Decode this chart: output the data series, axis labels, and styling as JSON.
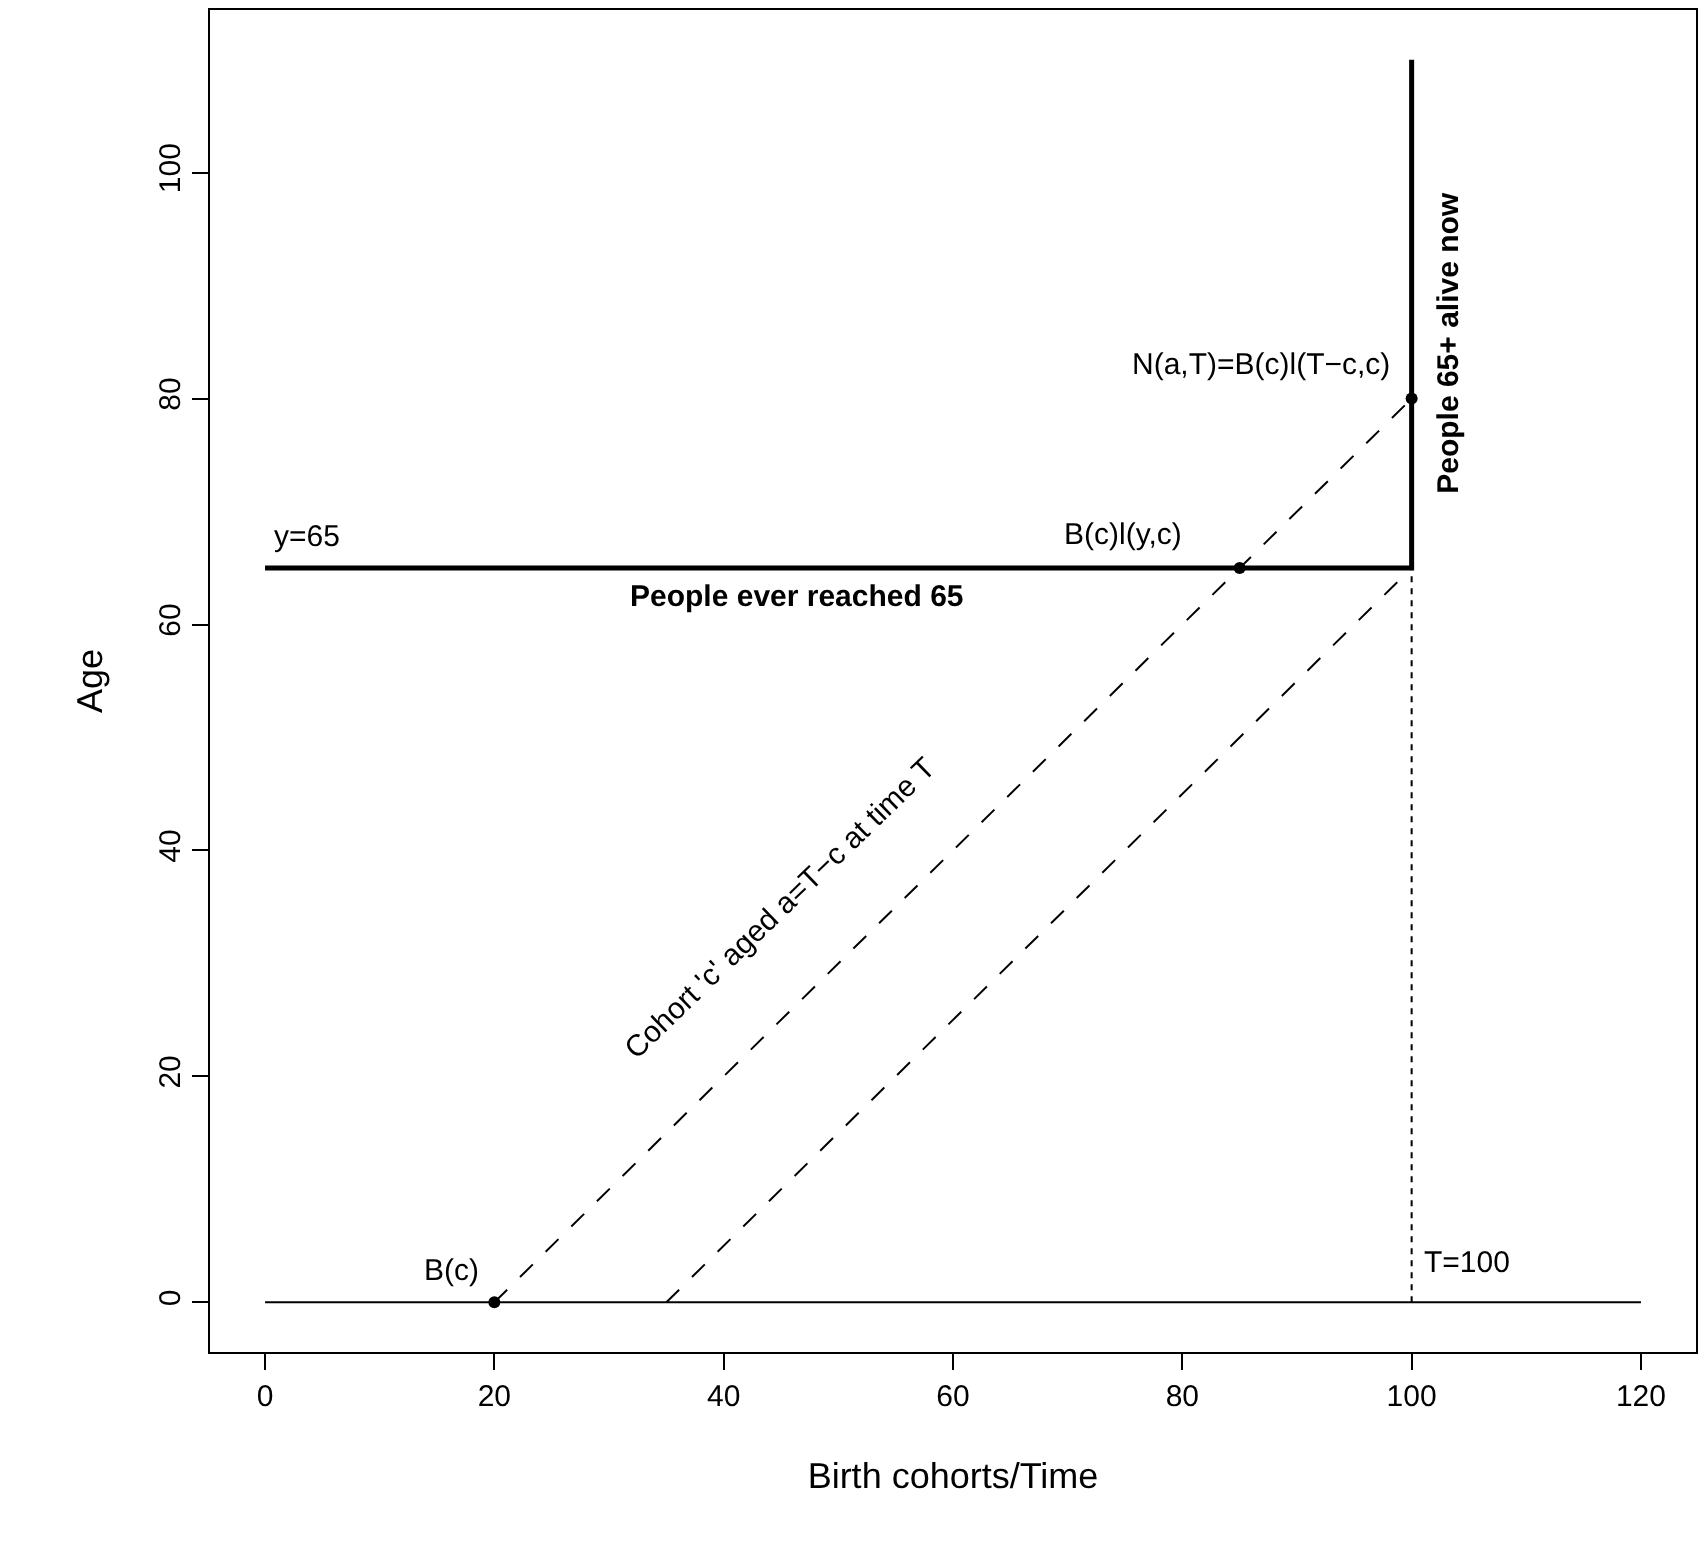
{
  "chart_data": {
    "type": "line",
    "xlabel": "Birth cohorts/Time",
    "ylabel": "Age",
    "xlim": [
      -4.8,
      124.8
    ],
    "ylim": [
      -4.4,
      114.4
    ],
    "xticks": [
      0,
      20,
      40,
      60,
      80,
      100,
      120
    ],
    "yticks": [
      0,
      20,
      40,
      60,
      80,
      100
    ],
    "grid": false,
    "series": [
      {
        "x": [
          0,
          120
        ],
        "values": [
          0,
          0
        ],
        "color": "#000000",
        "line_style": "solid"
      },
      {
        "x": [
          0,
          100,
          100
        ],
        "values": [
          65,
          65,
          110
        ],
        "color": "#000000",
        "line_style": "solid"
      },
      {
        "x": [
          20,
          100
        ],
        "values": [
          0,
          80
        ],
        "color": "#000000",
        "line_style": "dashed"
      },
      {
        "x": [
          35,
          100
        ],
        "values": [
          0,
          65
        ],
        "color": "#000000",
        "line_style": "dashed"
      },
      {
        "x": [
          100,
          100
        ],
        "values": [
          0,
          65
        ],
        "color": "#000000",
        "line_style": "dotted"
      },
      {
        "type": "scatter",
        "x": [
          20,
          85,
          100
        ],
        "values": [
          0,
          65,
          80
        ],
        "color": "#000000",
        "marker": "circle"
      }
    ],
    "annotations": [
      {
        "text": "y=65",
        "x": 0,
        "y": 65
      },
      {
        "text": "People ever reached 65",
        "x": 46.4,
        "y": 65
      },
      {
        "text": "B(c)l(y,c)",
        "x": 85,
        "y": 65
      },
      {
        "text": "N(a,T)=B(c)l(T−c,c)",
        "x": 100,
        "y": 80
      },
      {
        "text": "People 65+ alive now",
        "x": 100,
        "y": 85
      },
      {
        "text": "B(c)",
        "x": 20,
        "y": 0
      },
      {
        "text": "T=100",
        "x": 100,
        "y": 0
      },
      {
        "text": "Cohort 'c' aged a=T−c at time T",
        "x": 50,
        "y": 30
      }
    ]
  }
}
